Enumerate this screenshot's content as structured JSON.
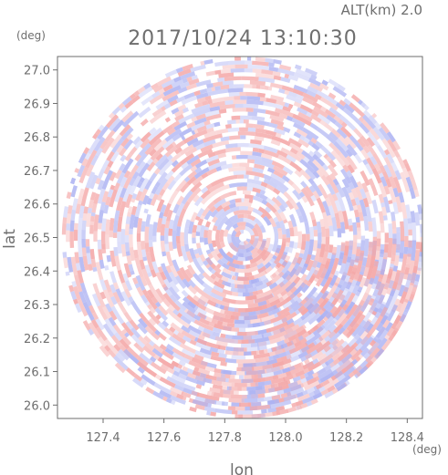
{
  "chart_data": {
    "type": "heatmap",
    "title": "2017/10/24 13:10:30",
    "subtitle": "ALT(km) 2.0",
    "xlabel": "lon",
    "ylabel": "lat",
    "x_unit": "(deg)",
    "y_unit": "(deg)",
    "xlim": [
      127.25,
      128.45
    ],
    "ylim": [
      25.96,
      27.04
    ],
    "x_ticks": [
      "127.4",
      "127.6",
      "127.8",
      "128.0",
      "128.2",
      "128.4"
    ],
    "y_ticks": [
      "26.0",
      "26.1",
      "26.2",
      "26.3",
      "26.4",
      "26.5",
      "26.6",
      "26.7",
      "26.8",
      "26.9",
      "27.0"
    ],
    "radar_center": {
      "lon": 127.86,
      "lat": 26.5
    },
    "radar_extent_deg": {
      "lon": 0.6,
      "lat": 0.54
    },
    "colors": {
      "positive": "#f4a7a7",
      "negative": "#aab0f2",
      "neutral": "#ffffff",
      "axis": "#6e6e6e"
    }
  }
}
